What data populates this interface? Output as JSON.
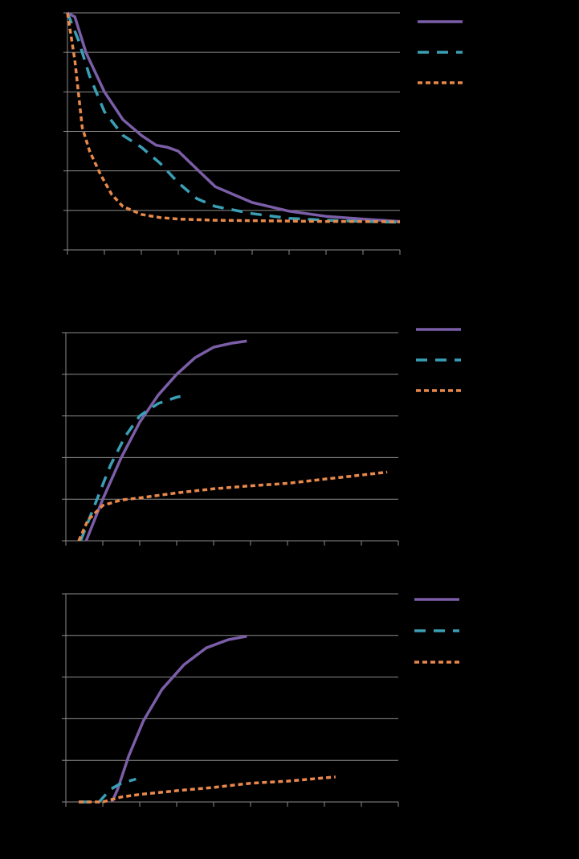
{
  "colors": {
    "background": "#000000",
    "gridline": "#8c8c8c",
    "axis": "#8c8c8c",
    "series": [
      "#7b5ea7",
      "#3a9fb5",
      "#e8884a"
    ]
  },
  "chart_data": [
    {
      "type": "line",
      "grid": true,
      "legend": "right",
      "xlim": [
        0,
        9
      ],
      "ylim": [
        0,
        6
      ],
      "series": [
        {
          "style": "solid",
          "points": [
            [
              0,
              6
            ],
            [
              0.2,
              5.9
            ],
            [
              0.5,
              5
            ],
            [
              1,
              4
            ],
            [
              1.5,
              3.3
            ],
            [
              2,
              2.9
            ],
            [
              2.4,
              2.65
            ],
            [
              2.7,
              2.6
            ],
            [
              3,
              2.5
            ],
            [
              3.5,
              2.05
            ],
            [
              4,
              1.6
            ],
            [
              5,
              1.2
            ],
            [
              6,
              0.98
            ],
            [
              7,
              0.85
            ],
            [
              8,
              0.78
            ],
            [
              9,
              0.72
            ]
          ]
        },
        {
          "style": "dashed",
          "points": [
            [
              0,
              6
            ],
            [
              0.3,
              5.3
            ],
            [
              0.6,
              4.4
            ],
            [
              1,
              3.5
            ],
            [
              1.5,
              2.9
            ],
            [
              2,
              2.6
            ],
            [
              2.5,
              2.2
            ],
            [
              3,
              1.7
            ],
            [
              3.5,
              1.3
            ],
            [
              4,
              1.1
            ],
            [
              5,
              0.92
            ],
            [
              6,
              0.8
            ],
            [
              7,
              0.75
            ],
            [
              8,
              0.72
            ],
            [
              9,
              0.7
            ]
          ]
        },
        {
          "style": "dotted",
          "points": [
            [
              0,
              6
            ],
            [
              0.2,
              4.8
            ],
            [
              0.4,
              3.1
            ],
            [
              0.6,
              2.5
            ],
            [
              0.9,
              1.9
            ],
            [
              1.2,
              1.4
            ],
            [
              1.5,
              1.1
            ],
            [
              2,
              0.9
            ],
            [
              2.5,
              0.82
            ],
            [
              3,
              0.78
            ],
            [
              4,
              0.75
            ],
            [
              5,
              0.74
            ],
            [
              6,
              0.73
            ],
            [
              7,
              0.72
            ],
            [
              8,
              0.72
            ],
            [
              9,
              0.71
            ]
          ]
        }
      ]
    },
    {
      "type": "line",
      "grid": true,
      "legend": "right",
      "xlim": [
        0,
        9
      ],
      "ylim": [
        0,
        5
      ],
      "series": [
        {
          "style": "solid",
          "points": [
            [
              0.55,
              0
            ],
            [
              1,
              1
            ],
            [
              1.5,
              2
            ],
            [
              2,
              2.85
            ],
            [
              2.5,
              3.5
            ],
            [
              3,
              4
            ],
            [
              3.5,
              4.4
            ],
            [
              4,
              4.65
            ],
            [
              4.5,
              4.75
            ],
            [
              4.9,
              4.8
            ]
          ]
        },
        {
          "style": "dashed",
          "points": [
            [
              0.4,
              0
            ],
            [
              0.8,
              0.9
            ],
            [
              1.2,
              1.8
            ],
            [
              1.6,
              2.5
            ],
            [
              2,
              3
            ],
            [
              2.5,
              3.3
            ],
            [
              3,
              3.45
            ],
            [
              3.1,
              3.47
            ]
          ]
        },
        {
          "style": "dotted",
          "points": [
            [
              0.35,
              0
            ],
            [
              0.6,
              0.5
            ],
            [
              1,
              0.85
            ],
            [
              1.5,
              0.98
            ],
            [
              2,
              1.03
            ],
            [
              3,
              1.15
            ],
            [
              4,
              1.25
            ],
            [
              5,
              1.32
            ],
            [
              6,
              1.38
            ],
            [
              7,
              1.48
            ],
            [
              8,
              1.58
            ],
            [
              8.7,
              1.65
            ]
          ]
        }
      ]
    },
    {
      "type": "line",
      "grid": true,
      "legend": "right",
      "xlim": [
        0,
        9
      ],
      "ylim": [
        0,
        5
      ],
      "series": [
        {
          "style": "solid",
          "points": [
            [
              1.25,
              0
            ],
            [
              1.4,
              0.3
            ],
            [
              1.7,
              1.1
            ],
            [
              2.1,
              1.95
            ],
            [
              2.6,
              2.7
            ],
            [
              3.2,
              3.3
            ],
            [
              3.8,
              3.7
            ],
            [
              4.4,
              3.9
            ],
            [
              4.9,
              3.98
            ]
          ]
        },
        {
          "style": "dashed",
          "points": [
            [
              0.35,
              0
            ],
            [
              0.9,
              0
            ],
            [
              1.2,
              0.3
            ],
            [
              1.5,
              0.45
            ],
            [
              1.9,
              0.55
            ]
          ]
        },
        {
          "style": "dotted",
          "points": [
            [
              0.35,
              0
            ],
            [
              1,
              0
            ],
            [
              1.5,
              0.12
            ],
            [
              2,
              0.18
            ],
            [
              3,
              0.27
            ],
            [
              4,
              0.35
            ],
            [
              5,
              0.45
            ],
            [
              6,
              0.5
            ],
            [
              7,
              0.58
            ],
            [
              7.3,
              0.6
            ]
          ]
        }
      ]
    }
  ]
}
